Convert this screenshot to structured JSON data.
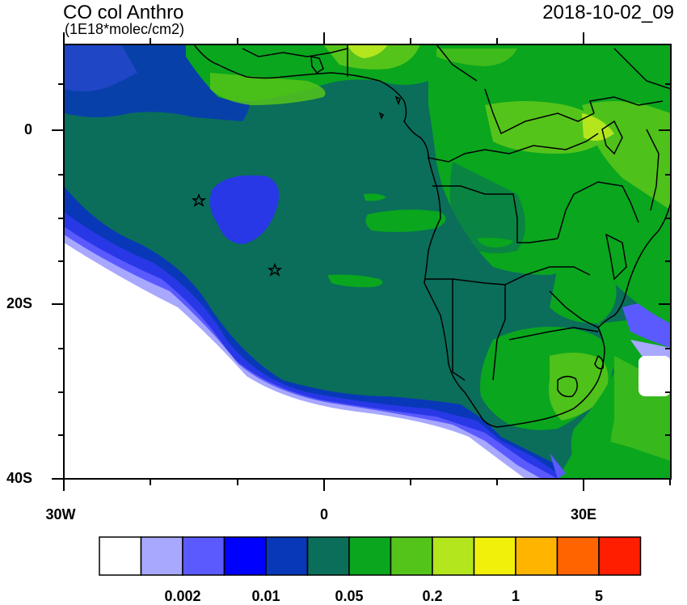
{
  "header": {
    "title": "CO col Anthro",
    "units": "(1E18*molec/cm2)",
    "timestamp": "2018-10-02_09"
  },
  "axes": {
    "y_ticks": [
      "0",
      "20S",
      "40S"
    ],
    "x_ticks": [
      "30W",
      "0",
      "30E"
    ]
  },
  "colorbar": {
    "labels": [
      "0.002",
      "0.01",
      "0.05",
      "0.2",
      "1",
      "5"
    ],
    "colors": [
      "#ffffff",
      "#a8a8ff",
      "#5a5aff",
      "#0000ff",
      "#0838b8",
      "#0a6e5a",
      "#0aa61e",
      "#55c41a",
      "#b4e61e",
      "#f0f00a",
      "#ffb400",
      "#ff6400",
      "#ff1e00"
    ]
  },
  "palette": {
    "ocean": "#0a6e5a",
    "blue_low": "#0838b8",
    "blue_bright": "#2838e6",
    "lavender": "#a8a8ff",
    "green": "#0aa61e",
    "green_light": "#55c41a",
    "yellowgreen": "#b4e61e"
  },
  "markers": [
    "star-marker-1",
    "star-marker-2"
  ]
}
